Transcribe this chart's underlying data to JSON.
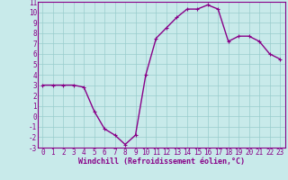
{
  "x": [
    0,
    1,
    2,
    3,
    4,
    5,
    6,
    7,
    8,
    9,
    10,
    11,
    12,
    13,
    14,
    15,
    16,
    17,
    18,
    19,
    20,
    21,
    22,
    23
  ],
  "y": [
    3.0,
    3.0,
    3.0,
    3.0,
    2.8,
    0.5,
    -1.2,
    -1.8,
    -2.7,
    -1.8,
    4.0,
    7.5,
    8.5,
    9.5,
    10.3,
    10.3,
    10.7,
    10.3,
    7.2,
    7.7,
    7.7,
    7.2,
    6.0,
    5.5
  ],
  "line_color": "#880088",
  "marker": "+",
  "marker_size": 3,
  "bg_color": "#c8eaea",
  "grid_color": "#99cccc",
  "xlabel": "Windchill (Refroidissement éolien,°C)",
  "ylim": [
    -3,
    11
  ],
  "xlim": [
    -0.5,
    23.5
  ],
  "yticks": [
    -3,
    -2,
    -1,
    0,
    1,
    2,
    3,
    4,
    5,
    6,
    7,
    8,
    9,
    10,
    11
  ],
  "xticks": [
    0,
    1,
    2,
    3,
    4,
    5,
    6,
    7,
    8,
    9,
    10,
    11,
    12,
    13,
    14,
    15,
    16,
    17,
    18,
    19,
    20,
    21,
    22,
    23
  ],
  "tick_label_color": "#880088",
  "xlabel_color": "#880088",
  "spine_color": "#880088",
  "tick_fontsize": 5.5,
  "xlabel_fontsize": 6.0,
  "linewidth": 1.0,
  "markeredgewidth": 0.8
}
